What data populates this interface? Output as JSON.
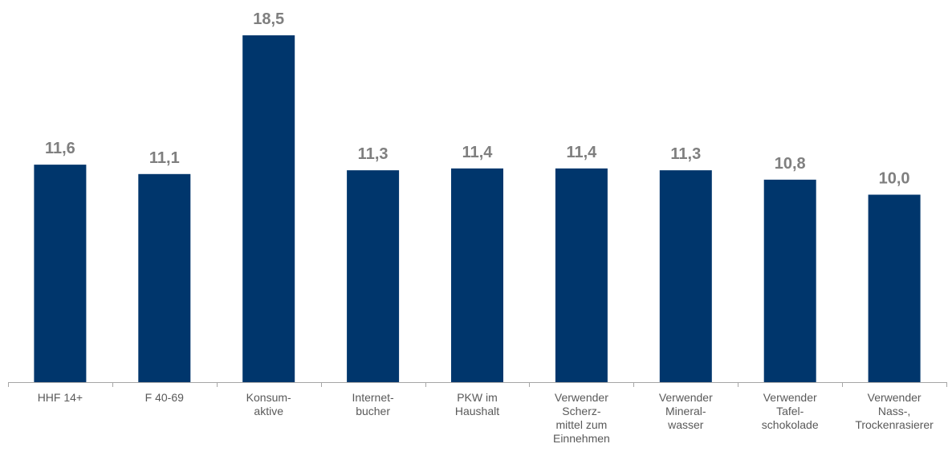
{
  "chart_data": {
    "type": "bar",
    "title": "",
    "xlabel": "",
    "ylabel": "",
    "ylim": [
      0,
      18.5
    ],
    "grid": false,
    "categories": [
      [
        "HHF 14+"
      ],
      [
        "F 40-69"
      ],
      [
        "Konsum-",
        "aktive"
      ],
      [
        "Internet-",
        "bucher"
      ],
      [
        "PKW im",
        "Haushalt"
      ],
      [
        "Verwender",
        "Scherz-",
        "mittel zum",
        "Einnehmen"
      ],
      [
        "Verwender",
        "Mineral-",
        "wasser"
      ],
      [
        "Verwender",
        "Tafel-",
        "schokolade"
      ],
      [
        "Verwender",
        "Nass-,",
        "Trockenrasierer"
      ]
    ],
    "values": [
      11.6,
      11.1,
      18.5,
      11.3,
      11.4,
      11.4,
      11.3,
      10.8,
      10.0
    ],
    "value_labels": [
      "11,6",
      "11,1",
      "18,5",
      "11,3",
      "11,4",
      "11,4",
      "11,3",
      "10,8",
      "10,0"
    ],
    "bar_color": "#00366c",
    "label_color": "#7f7f7f",
    "axis_color": "#a6a6a6"
  }
}
